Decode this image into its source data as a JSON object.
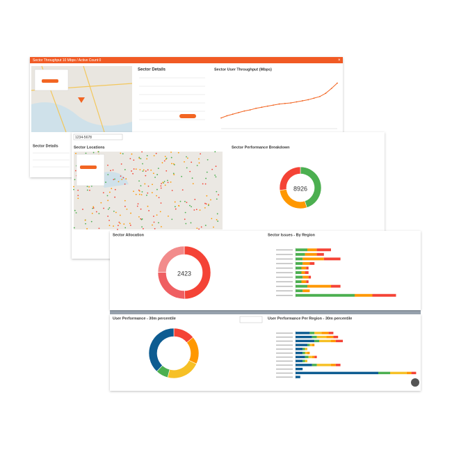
{
  "ui": {
    "window_title": "Sector Throughput 10 Mbps / Active Count 0",
    "details_heading": "Sector Details",
    "locations_heading": "Sector Locations",
    "search": "1234-5678",
    "table_heading": "Sector Details"
  },
  "chart_data": [
    {
      "type": "line",
      "title": "Sector User Throughput (Mbps)",
      "color": "#f26522",
      "ylim": [
        0,
        100
      ],
      "values": [
        20,
        24,
        27,
        30,
        33,
        35,
        38,
        40,
        42,
        44,
        46,
        47,
        48,
        50,
        52,
        54,
        57,
        60,
        66,
        75,
        85
      ]
    },
    {
      "type": "pie",
      "title": "Sector Performance Breakdown",
      "total": 8926,
      "series": [
        {
          "color": "#4caf50",
          "values": [
            4012
          ]
        },
        {
          "color": "#ff9800",
          "values": [
            2510
          ]
        },
        {
          "color": "#f44336",
          "values": [
            2404
          ]
        }
      ]
    },
    {
      "type": "pie",
      "title": "Sector Allocation",
      "total": 2423,
      "series": [
        {
          "color": "#f44336",
          "values": [
            1203
          ]
        },
        {
          "color": "#ef5f62",
          "values": [
            620
          ]
        },
        {
          "color": "#f28b8b",
          "values": [
            600
          ]
        }
      ]
    },
    {
      "type": "bar",
      "title": "Sector Issues - By Region",
      "xlim": [
        0,
        100
      ],
      "categories": [
        null,
        null,
        null,
        null,
        null,
        null,
        null,
        null,
        null,
        null,
        null
      ],
      "series": [
        {
          "color": "#4caf50",
          "values": [
            10,
            8,
            6,
            6,
            5,
            5,
            6,
            5,
            10,
            6,
            50
          ]
        },
        {
          "color": "#ff9800",
          "values": [
            8,
            10,
            18,
            6,
            4,
            3,
            5,
            4,
            20,
            6,
            15
          ]
        },
        {
          "color": "#f44336",
          "values": [
            12,
            6,
            14,
            4,
            2,
            3,
            2,
            2,
            8,
            0,
            20
          ]
        }
      ]
    },
    {
      "type": "pie",
      "title": "User Performance - 30m percentile",
      "series": [
        {
          "color": "#f44336",
          "values": [
            14
          ]
        },
        {
          "color": "#ff9800",
          "values": [
            18
          ]
        },
        {
          "color": "#f6c026",
          "values": [
            22
          ]
        },
        {
          "color": "#4caf50",
          "values": [
            8
          ]
        },
        {
          "color": "#0d5c91",
          "values": [
            38
          ]
        }
      ]
    },
    {
      "type": "bar",
      "title": "User Performance Per Region - 30m percentile",
      "xlim": [
        0,
        100
      ],
      "categories": [
        null,
        null,
        null,
        null,
        null,
        null,
        null,
        null,
        null,
        null,
        null,
        null
      ],
      "series": [
        {
          "color": "#0d5c91",
          "values": [
            12,
            14,
            16,
            10,
            6,
            6,
            8,
            6,
            14,
            6,
            70,
            4
          ]
        },
        {
          "color": "#4caf50",
          "values": [
            4,
            4,
            4,
            2,
            2,
            2,
            3,
            2,
            4,
            0,
            10,
            0
          ]
        },
        {
          "color": "#f6c026",
          "values": [
            6,
            8,
            10,
            2,
            2,
            2,
            3,
            2,
            12,
            0,
            14,
            0
          ]
        },
        {
          "color": "#ff9800",
          "values": [
            6,
            6,
            4,
            2,
            0,
            2,
            2,
            0,
            4,
            0,
            4,
            0
          ]
        },
        {
          "color": "#f44336",
          "values": [
            4,
            4,
            6,
            0,
            0,
            0,
            2,
            0,
            4,
            0,
            4,
            0
          ]
        }
      ]
    }
  ]
}
